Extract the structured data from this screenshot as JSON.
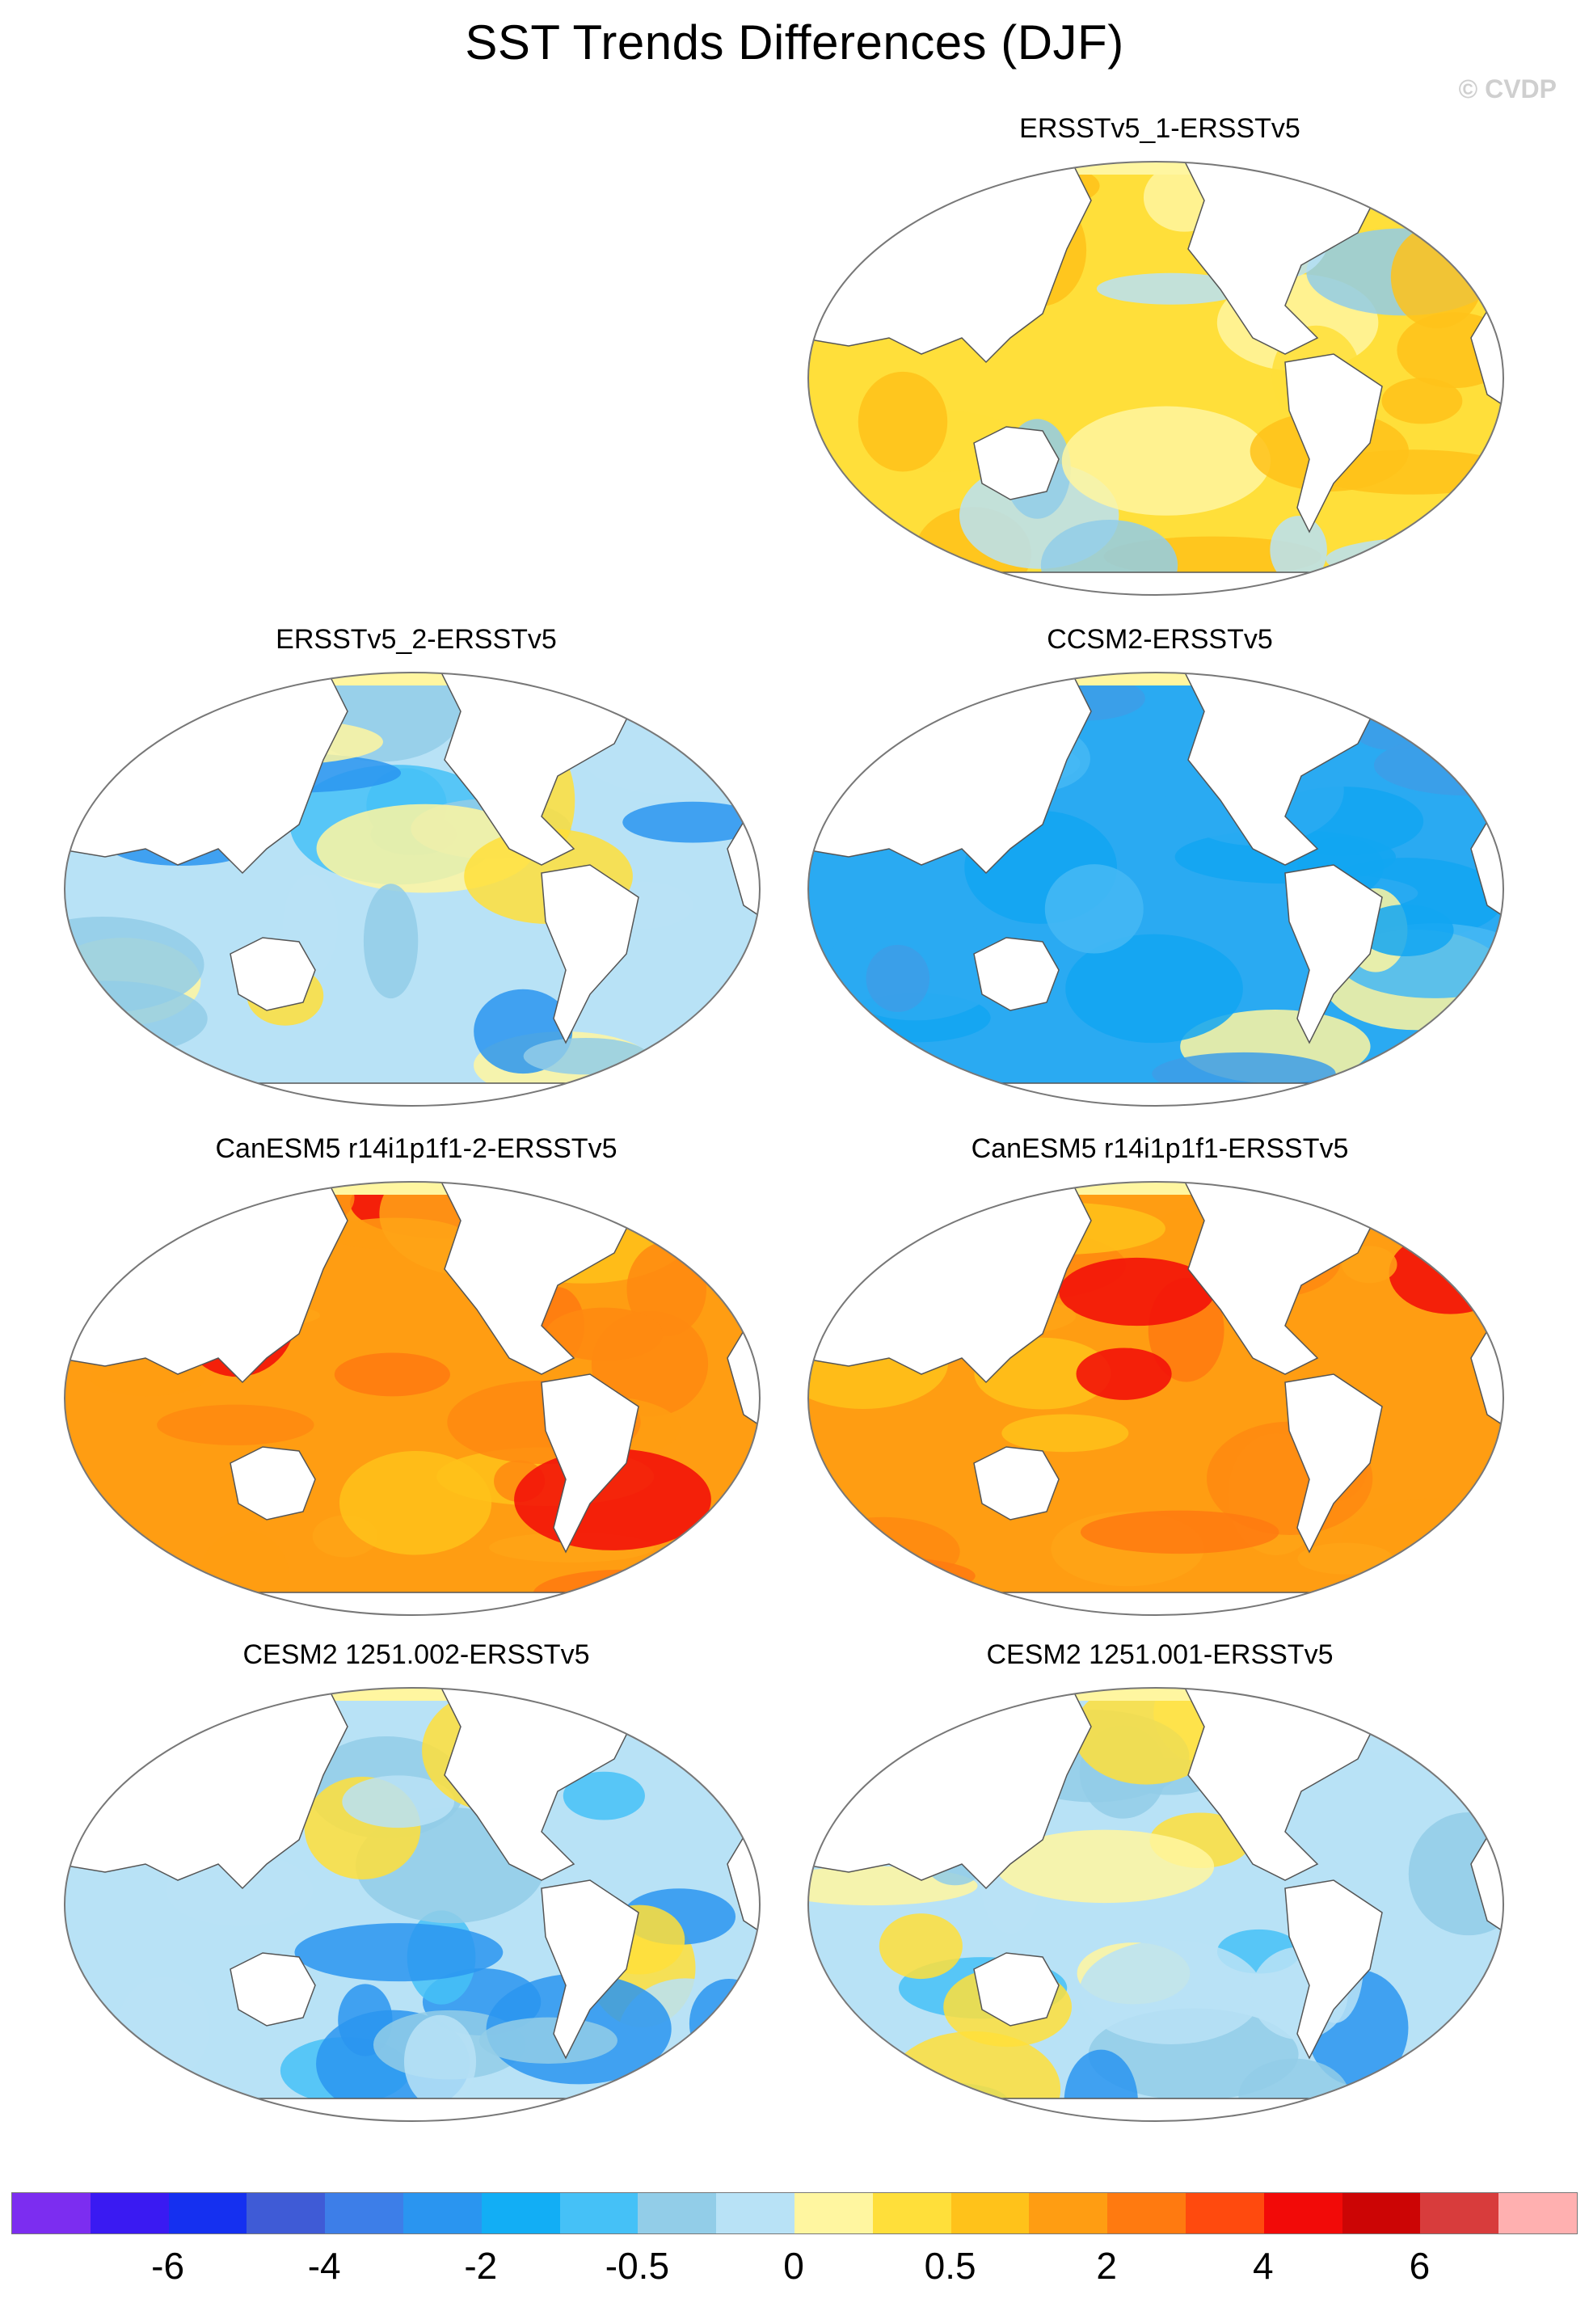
{
  "title": "SST Trends Differences (DJF)",
  "credit": "© CVDP",
  "panels": [
    {
      "title": "ERSSTv5_1-ERSSTv5",
      "pattern": "mixed-warm"
    },
    {
      "title": "ERSSTv5_2-ERSSTv5",
      "pattern": "mixed-cool"
    },
    {
      "title": "CCSM2-ERSSTv5",
      "pattern": "cool"
    },
    {
      "title": "CanESM5 r14i1p1f1-2-ERSSTv5",
      "pattern": "warm"
    },
    {
      "title": "CanESM5 r14i1p1f1-ERSSTv5",
      "pattern": "warm"
    },
    {
      "title": "CESM2 1251.002-ERSSTv5",
      "pattern": "mixed-cool"
    },
    {
      "title": "CESM2 1251.001-ERSSTv5",
      "pattern": "mixed-cool"
    }
  ],
  "colorbar": {
    "colors": [
      "#7c2df0",
      "#3a1af2",
      "#1530f0",
      "#3f5bd6",
      "#3d7ee8",
      "#2a95f0",
      "#12aef5",
      "#45c1f7",
      "#92cde8",
      "#b8e2f6",
      "#fff6a0",
      "#ffdf3a",
      "#ffc21a",
      "#ff9d12",
      "#ff7a10",
      "#ff4a0e",
      "#f20a08",
      "#cc0505",
      "#d83c3c",
      "#ffb0b0"
    ],
    "labels": [
      "-6",
      "-4",
      "-2",
      "-0.5",
      "0",
      "0.5",
      "2",
      "4",
      "6"
    ]
  }
}
